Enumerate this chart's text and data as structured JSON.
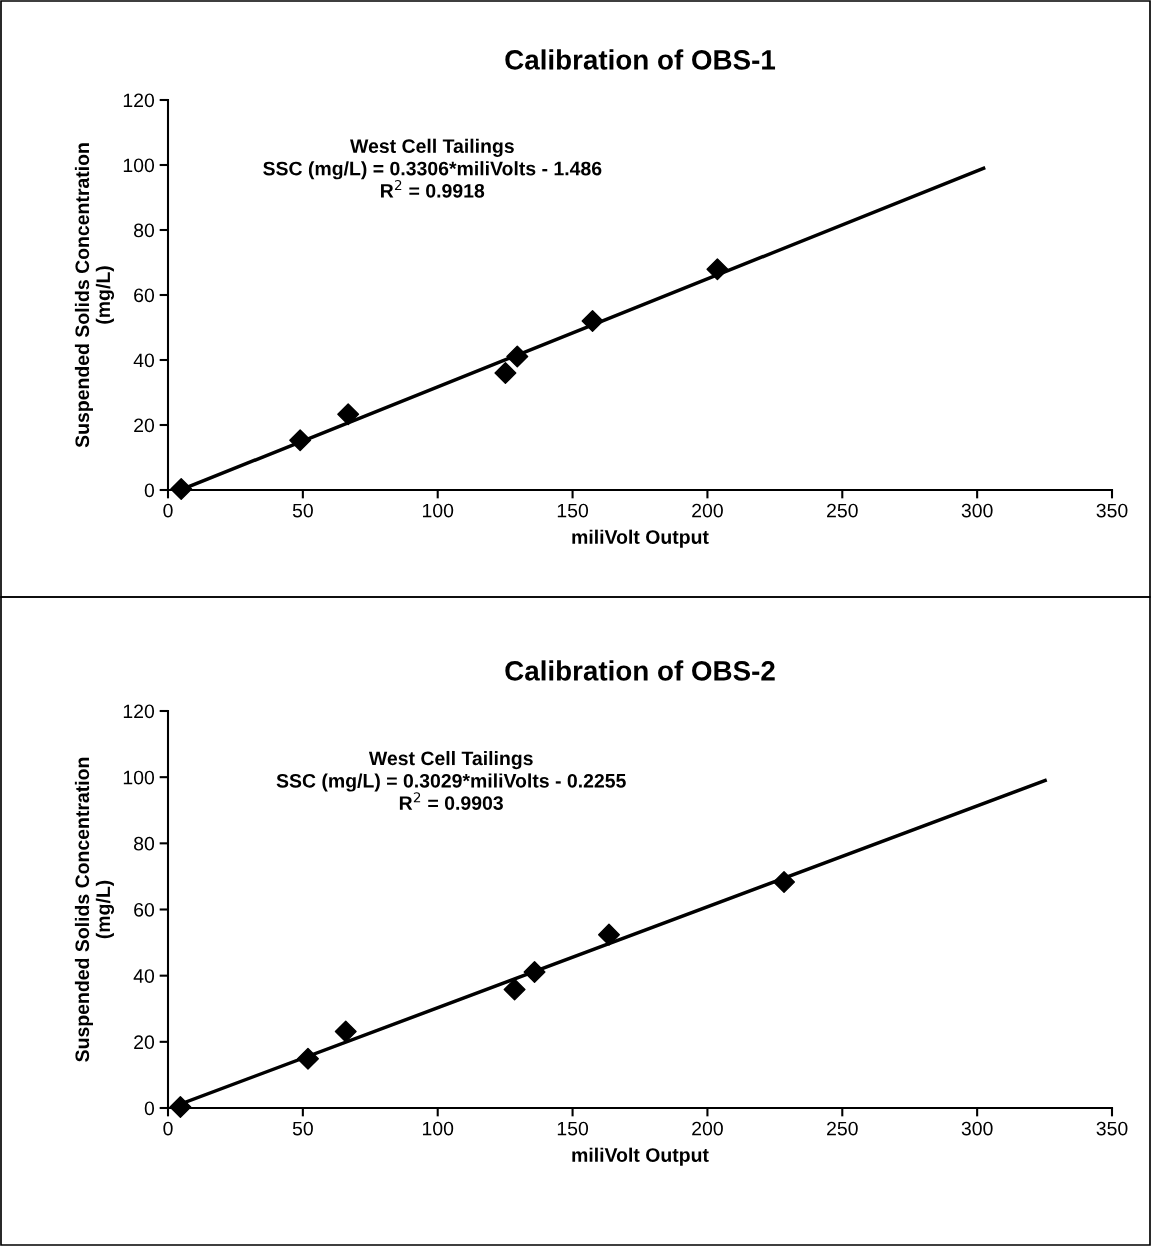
{
  "chart_data": [
    {
      "type": "scatter",
      "title": "Calibration of OBS-1",
      "xlabel": "miliVolt Output",
      "ylabel": "Suspended Solids Concentration\n(mg/L)",
      "annotations": [
        "West Cell Tailings\nSSC (mg/L) = 0.3306*miliVolts - 1.486\nR$^{2}$ = 0.9918"
      ],
      "series": [
        {
          "color": "#000000",
          "marker": "diamond",
          "x": [
            4.9,
            49.0,
            66.8,
            125.1,
            129.5,
            157.4,
            203.7
          ],
          "values": [
            0.3,
            15.3,
            23.3,
            36.0,
            41.1,
            52.0,
            67.9
          ]
        },
        {
          "type": "line",
          "color": "#000000",
          "line_style": "solid",
          "x": [
            4.9,
            302.4
          ],
          "values": [
            0.1,
            99.0
          ]
        }
      ],
      "xlim": [
        0,
        350
      ],
      "xticks": [
        0,
        50,
        100,
        150,
        200,
        250,
        300,
        350
      ],
      "ylim": [
        0,
        120
      ],
      "yticks": [
        0,
        20,
        40,
        60,
        80,
        100,
        120
      ],
      "grid": false
    },
    {
      "type": "scatter",
      "title": "Calibration of OBS-2",
      "xlabel": "miliVolt Output",
      "ylabel": "Suspended Solids Concentration\n(mg/L)",
      "annotations": [
        "West Cell Tailings\nSSC (mg/L) = 0.3029*miliVolts - 0.2255\nR$^{2}$ = 0.9903"
      ],
      "series": [
        {
          "color": "#000000",
          "marker": "diamond",
          "x": [
            4.6,
            51.9,
            65.9,
            128.5,
            135.9,
            163.5,
            228.4
          ],
          "values": [
            0.3,
            14.9,
            23.1,
            35.8,
            41.1,
            52.4,
            68.3
          ]
        },
        {
          "type": "line",
          "color": "#000000",
          "line_style": "solid",
          "x": [
            4.6,
            325.2
          ],
          "values": [
            1.2,
            99.0
          ]
        }
      ],
      "xlim": [
        0,
        350
      ],
      "xticks": [
        0,
        50,
        100,
        150,
        200,
        250,
        300,
        350
      ],
      "ylim": [
        0,
        120
      ],
      "yticks": [
        0,
        20,
        40,
        60,
        80,
        100,
        120
      ],
      "grid": false
    }
  ]
}
